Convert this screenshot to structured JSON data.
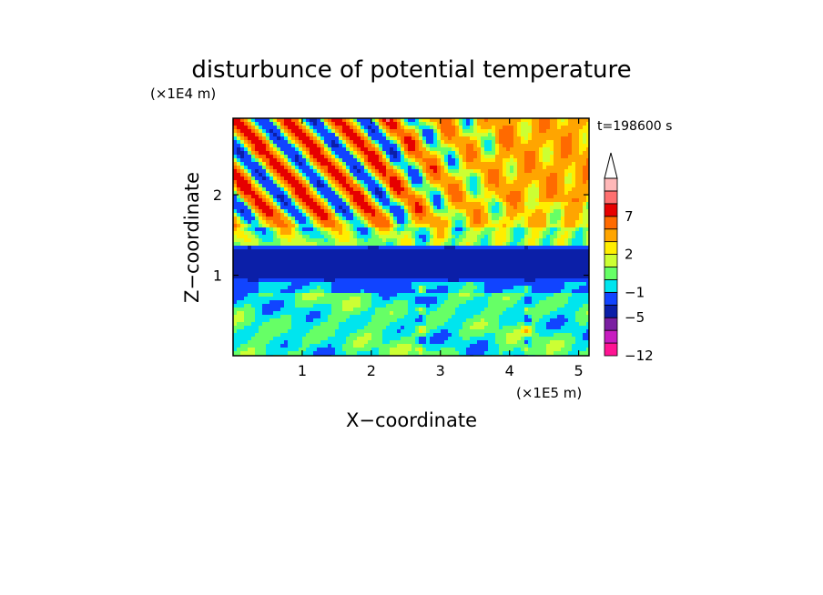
{
  "chart_data": {
    "type": "heatmap",
    "title": "disturbunce of potential temperature",
    "xlabel": "X−coordinate",
    "ylabel": "Z−coordinate",
    "x_unit": "(×1E5 m)",
    "y_unit": "(×1E4 m)",
    "time_label": "t=198600 s",
    "x_range": [
      0,
      5.15
    ],
    "y_range": [
      0,
      2.95
    ],
    "x_ticks": [
      1,
      2,
      3,
      4,
      5
    ],
    "y_ticks": [
      1,
      2
    ],
    "grid": false,
    "legend_position": "right",
    "colorbar": {
      "levels": [
        -12,
        -9,
        -7,
        -5,
        -3,
        -1,
        0,
        1,
        2,
        3,
        5,
        7,
        9,
        12
      ],
      "colors": [
        "#ff1493",
        "#c81cc0",
        "#7b1fa2",
        "#0b1fa8",
        "#1144ff",
        "#00e5ee",
        "#66ff66",
        "#ccff33",
        "#ffee00",
        "#ffa500",
        "#ff6a00",
        "#e60000",
        "#ff7070",
        "#ffb8b8"
      ],
      "labels": [
        {
          "text": "7",
          "level": 7
        },
        {
          "text": "2",
          "level": 2
        },
        {
          "text": "−1",
          "level": -1
        },
        {
          "text": "−5",
          "level": -5
        },
        {
          "text": "−12",
          "level": -12
        }
      ],
      "extend_top": true
    }
  }
}
